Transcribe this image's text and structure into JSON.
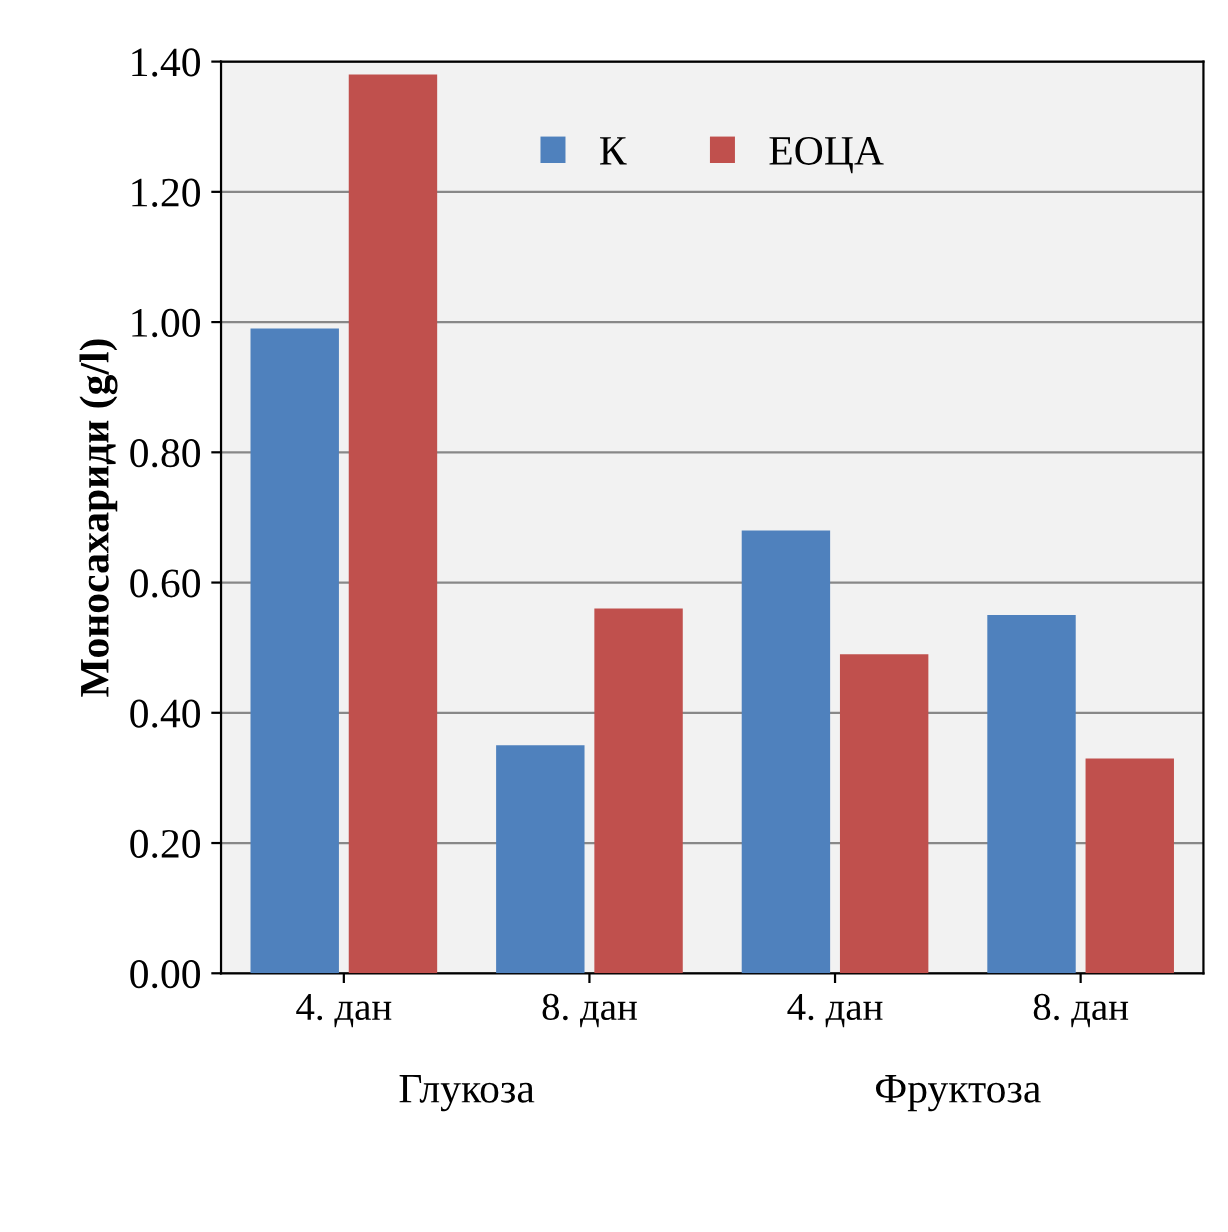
{
  "chart_data": {
    "type": "bar",
    "ylabel": "Моносахариди (g/l)",
    "categories": [
      "4. дан",
      "8. дан",
      "4. дан",
      "8. дан"
    ],
    "series": [
      {
        "name": "К",
        "color": "#4f81bd",
        "values": [
          0.99,
          0.35,
          0.68,
          0.55
        ]
      },
      {
        "name": "ЕОЦА",
        "color": "#c0504d",
        "values": [
          1.38,
          0.56,
          0.49,
          0.33
        ]
      }
    ],
    "annotations": [
      "Глукоза",
      "Фруктоза"
    ],
    "ylim": [
      0,
      1.4
    ],
    "yticks": [
      {
        "value": 0,
        "label": "0.00"
      },
      {
        "value": 0.2,
        "label": "0.20"
      },
      {
        "value": 0.4,
        "label": "0.40"
      },
      {
        "value": 0.6,
        "label": "0.60"
      },
      {
        "value": 0.8,
        "label": "0.80"
      },
      {
        "value": 1.0,
        "label": "1.00"
      },
      {
        "value": 1.2,
        "label": "1.20"
      },
      {
        "value": 1.4,
        "label": "1.40"
      }
    ],
    "grid": "y",
    "legend": "top"
  }
}
